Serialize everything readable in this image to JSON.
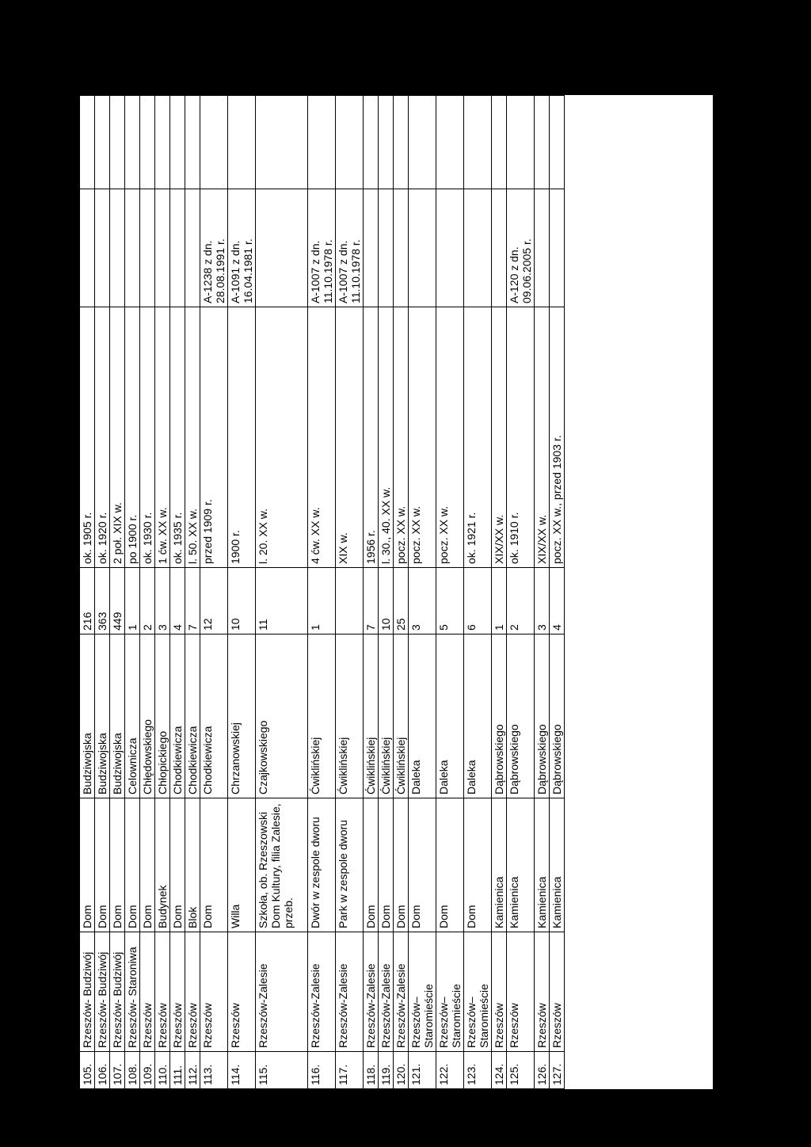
{
  "table": {
    "rows": [
      [
        "105.",
        "Rzeszów- Budziwój",
        "Dom",
        "Budziwojska",
        "216",
        "ok. 1905 r.",
        "",
        ""
      ],
      [
        "106.",
        "Rzeszów- Budziwój",
        "Dom",
        "Budziwojska",
        "363",
        "ok. 1920 r.",
        "",
        ""
      ],
      [
        "107.",
        "Rzeszów- Budziwój",
        "Dom",
        "Budziwojska",
        "449",
        "2 poł. XIX w.",
        "",
        ""
      ],
      [
        "108.",
        "Rzeszów- Staroniwa",
        "Dom",
        "Celownicza",
        "1",
        "po 1900 r.",
        "",
        ""
      ],
      [
        "109.",
        "Rzeszów",
        "Dom",
        "Chłędowskiego",
        "2",
        "ok. 1930 r.",
        "",
        ""
      ],
      [
        "110.",
        "Rzeszów",
        "Budynek",
        "Chłopickiego",
        "3",
        "1 ćw. XX w.",
        "",
        ""
      ],
      [
        "111.",
        "Rzeszów",
        "Dom",
        "Chodkiewicza",
        "4",
        "ok. 1935 r.",
        "",
        ""
      ],
      [
        "112.",
        "Rzeszów",
        "Blok",
        "Chodkiewicza",
        "7",
        "l. 50. XX w.",
        "",
        ""
      ],
      [
        "113.",
        "Rzeszów",
        "Dom",
        "Chodkiewicza",
        "12",
        "przed 1909 r.",
        "A-1238 z dn. 28.08.1991 r.",
        ""
      ],
      [
        "114.",
        "Rzeszów",
        "Willa",
        "Chrzanowskiej",
        "10",
        "1900 r.",
        "A-1091 z dn. 16.04.1981 r.",
        ""
      ],
      [
        "115.",
        "Rzeszów-Zalesie",
        "Szkoła, ob. Rzeszowski Dom Kultury, filia Zalesie, przeb.",
        "Czajkowskiego",
        "11",
        "l. 20. XX w.",
        "",
        ""
      ],
      [
        "116.",
        "Rzeszów-Zalesie",
        "Dwór w zespole dworu",
        "Ćwiklińskiej",
        "1",
        "4 ćw. XX w.",
        "A-1007 z dn. 11.10.1978 r.",
        ""
      ],
      [
        "117.",
        "Rzeszów-Zalesie",
        "Park w zespole dworu",
        "Ćwiklińskiej",
        "",
        "XIX w.",
        "A-1007 z dn. 11.10.1978 r.",
        ""
      ],
      [
        "118.",
        "Rzeszów-Zalesie",
        "Dom",
        "Ćwiklińskiej",
        "7",
        "1956 r.",
        "",
        ""
      ],
      [
        "119.",
        "Rzeszów-Zalesie",
        "Dom",
        "Ćwiklińskiej",
        "10",
        "l. 30., 40. XX w.",
        "",
        ""
      ],
      [
        "120.",
        "Rzeszów-Zalesie",
        "Dom",
        "Ćwiklińskiej",
        "25",
        "pocz. XX w.",
        "",
        ""
      ],
      [
        "121.",
        "Rzeszów– Staromieście",
        "Dom",
        "Daleka",
        "3",
        "pocz. XX w.",
        "",
        ""
      ],
      [
        "122.",
        "Rzeszów– Staromieście",
        "Dom",
        "Daleka",
        "5",
        "pocz. XX w.",
        "",
        ""
      ],
      [
        "123.",
        "Rzeszów– Staromieście",
        "Dom",
        "Daleka",
        "6",
        "ok. 1921 r.",
        "",
        ""
      ],
      [
        "124.",
        "Rzeszów",
        "Kamienica",
        "Dąbrowskiego",
        "1",
        "XIX/XX w.",
        "",
        ""
      ],
      [
        "125.",
        "Rzeszów",
        "Kamienica",
        "Dąbrowskiego",
        "2",
        "ok. 1910 r.",
        "A-120 z dn. 09.06.2005 r.",
        ""
      ],
      [
        "126.",
        "Rzeszów",
        "Kamienica",
        "Dąbrowskiego",
        "3",
        "XIX/XX w.",
        "",
        ""
      ],
      [
        "127.",
        "Rzeszów",
        "Kamienica",
        "Dąbrowskiego",
        "4",
        "pocz. XX w., przed 1903 r.",
        "",
        ""
      ]
    ]
  }
}
